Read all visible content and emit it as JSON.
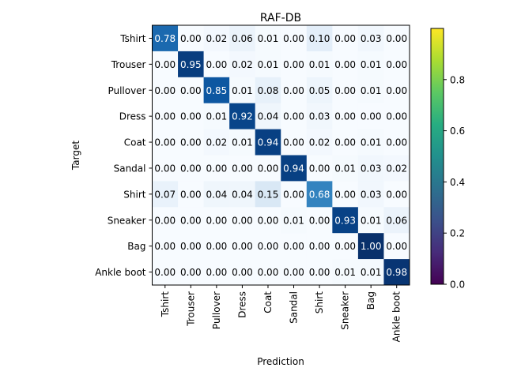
{
  "chart_data": {
    "type": "heatmap",
    "title": "RAF-DB",
    "xlabel": "Prediction",
    "ylabel": "Target",
    "x_categories": [
      "Tshirt",
      "Trouser",
      "Pullover",
      "Dress",
      "Coat",
      "Sandal",
      "Shirt",
      "Sneaker",
      "Bag",
      "Ankle boot"
    ],
    "y_categories": [
      "Tshirt",
      "Trouser",
      "Pullover",
      "Dress",
      "Coat",
      "Sandal",
      "Shirt",
      "Sneaker",
      "Bag",
      "Ankle boot"
    ],
    "values": [
      [
        0.78,
        0.0,
        0.02,
        0.06,
        0.01,
        0.0,
        0.1,
        0.0,
        0.03,
        0.0
      ],
      [
        0.0,
        0.95,
        0.0,
        0.02,
        0.01,
        0.0,
        0.01,
        0.0,
        0.01,
        0.0
      ],
      [
        0.0,
        0.0,
        0.85,
        0.01,
        0.08,
        0.0,
        0.05,
        0.0,
        0.01,
        0.0
      ],
      [
        0.0,
        0.0,
        0.01,
        0.92,
        0.04,
        0.0,
        0.03,
        0.0,
        0.0,
        0.0
      ],
      [
        0.0,
        0.0,
        0.02,
        0.01,
        0.94,
        0.0,
        0.02,
        0.0,
        0.01,
        0.0
      ],
      [
        0.0,
        0.0,
        0.0,
        0.0,
        0.0,
        0.94,
        0.0,
        0.01,
        0.03,
        0.02
      ],
      [
        0.07,
        0.0,
        0.04,
        0.04,
        0.15,
        0.0,
        0.68,
        0.0,
        0.03,
        0.0
      ],
      [
        0.0,
        0.0,
        0.0,
        0.0,
        0.0,
        0.01,
        0.0,
        0.93,
        0.01,
        0.06
      ],
      [
        0.0,
        0.0,
        0.0,
        0.0,
        0.0,
        0.0,
        0.0,
        0.0,
        1.0,
        0.0
      ],
      [
        0.0,
        0.0,
        0.0,
        0.0,
        0.0,
        0.0,
        0.0,
        0.01,
        0.01,
        0.98
      ]
    ],
    "value_format": "2 decimals",
    "cell_colormap": "Blues",
    "colorbar": {
      "colormap": "viridis",
      "range": [
        0,
        1
      ],
      "ticks": [
        0.0,
        0.2,
        0.4,
        0.6,
        0.8
      ],
      "tick_labels": [
        "0.0",
        "0.2",
        "0.4",
        "0.6",
        "0.8"
      ]
    }
  }
}
